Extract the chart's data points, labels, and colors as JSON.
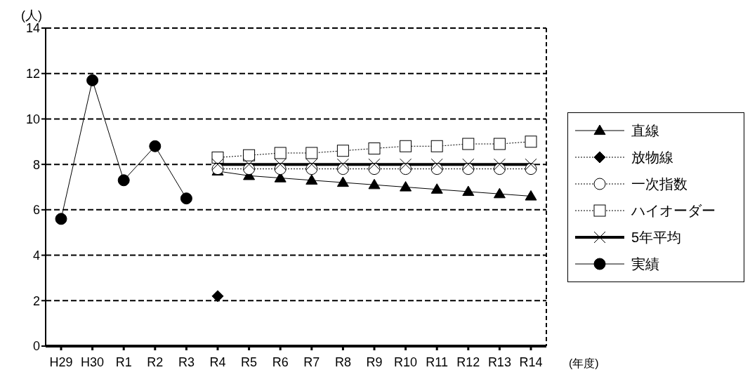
{
  "chart_data": {
    "type": "line",
    "ylabel": "(人)",
    "xlabel": "(年度)",
    "categories": [
      "H29",
      "H30",
      "R1",
      "R2",
      "R3",
      "R4",
      "R5",
      "R6",
      "R7",
      "R8",
      "R9",
      "R10",
      "R11",
      "R12",
      "R13",
      "R14"
    ],
    "ylim": [
      0,
      14
    ],
    "yticks": [
      0,
      2,
      4,
      6,
      8,
      10,
      12,
      14
    ],
    "grid": "y",
    "legend": "right",
    "series": [
      {
        "name": "直線",
        "color": "#000000",
        "marker": "triangle",
        "line_style": "solid",
        "values": [
          null,
          null,
          null,
          null,
          null,
          7.7,
          7.5,
          7.4,
          7.3,
          7.2,
          7.1,
          7.0,
          6.9,
          6.8,
          6.7,
          6.6
        ]
      },
      {
        "name": "放物線",
        "color": "#000000",
        "marker": "diamond",
        "line_style": "dotted",
        "values": [
          null,
          null,
          null,
          null,
          null,
          2.2,
          null,
          null,
          null,
          null,
          null,
          null,
          null,
          null,
          null,
          null
        ]
      },
      {
        "name": "一次指数",
        "color": "#000000",
        "marker": "circle",
        "line_style": "dotted",
        "values": [
          null,
          null,
          null,
          null,
          null,
          7.8,
          7.8,
          7.8,
          7.8,
          7.8,
          7.8,
          7.8,
          7.8,
          7.8,
          7.8,
          7.8
        ]
      },
      {
        "name": "ハイオーダー",
        "color": "#000000",
        "marker": "square",
        "line_style": "dotted",
        "values": [
          null,
          null,
          null,
          null,
          null,
          8.3,
          8.4,
          8.5,
          8.5,
          8.6,
          8.7,
          8.8,
          8.8,
          8.9,
          8.9,
          9.0
        ]
      },
      {
        "name": "5年平均",
        "color": "#000000",
        "marker": "cross",
        "line_style": "solid",
        "values": [
          null,
          null,
          null,
          null,
          null,
          8.0,
          8.0,
          8.0,
          8.0,
          8.0,
          8.0,
          8.0,
          8.0,
          8.0,
          8.0,
          8.0
        ]
      },
      {
        "name": "実績",
        "color": "#000000",
        "marker": "circle",
        "line_style": "solid",
        "values": [
          5.6,
          11.7,
          7.3,
          8.8,
          6.5,
          null,
          null,
          null,
          null,
          null,
          null,
          null,
          null,
          null,
          null,
          null
        ]
      }
    ]
  }
}
